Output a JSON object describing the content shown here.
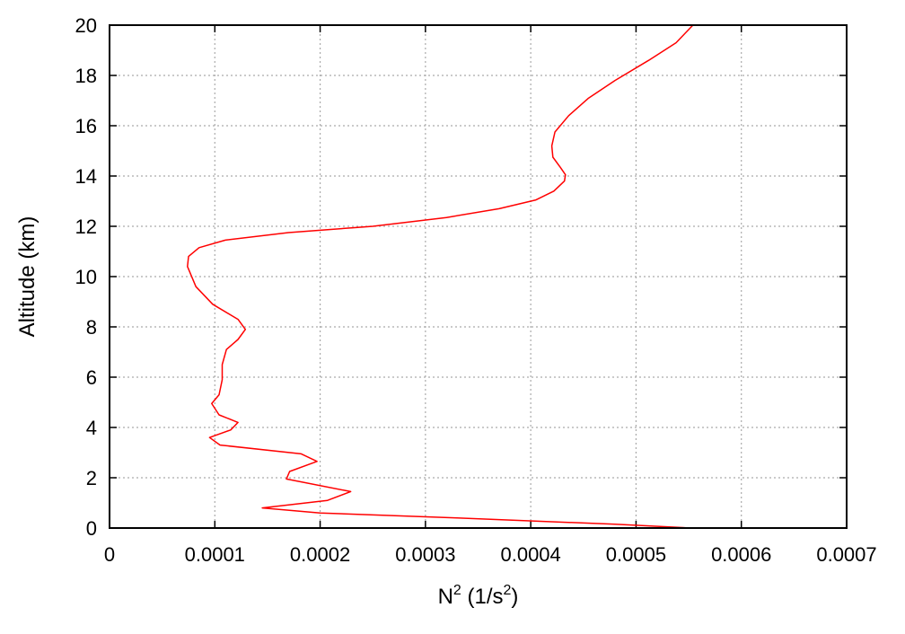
{
  "chart_data": {
    "type": "line",
    "xlabel_base": "N",
    "xlabel_base_sup": "2",
    "xlabel_unit_prefix": " (1/s",
    "xlabel_unit_sup": "2",
    "xlabel_unit_suffix": ")",
    "ylabel": "Altitude (km)",
    "xlim": [
      0,
      0.0007
    ],
    "ylim": [
      0,
      20
    ],
    "xticks": [
      0,
      0.0001,
      0.0002,
      0.0003,
      0.0004,
      0.0005,
      0.0006,
      0.0007
    ],
    "xtick_labels": [
      "0",
      "0.0001",
      "0.0002",
      "0.0003",
      "0.0004",
      "0.0005",
      "0.0006",
      "0.0007"
    ],
    "yticks": [
      0,
      2,
      4,
      6,
      8,
      10,
      12,
      14,
      16,
      18,
      20
    ],
    "ytick_labels": [
      "0",
      "2",
      "4",
      "6",
      "8",
      "10",
      "12",
      "14",
      "16",
      "18",
      "20"
    ],
    "grid": true,
    "series": [
      {
        "color": "#ff0000",
        "points": [
          [
            0.000552,
            0.0
          ],
          [
            0.00048,
            0.15
          ],
          [
            0.00033,
            0.4
          ],
          [
            0.0002,
            0.6
          ],
          [
            0.000145,
            0.8
          ],
          [
            0.000207,
            1.1
          ],
          [
            0.000229,
            1.45
          ],
          [
            0.000168,
            1.95
          ],
          [
            0.000171,
            2.25
          ],
          [
            0.000197,
            2.65
          ],
          [
            0.000182,
            2.95
          ],
          [
            0.000105,
            3.3
          ],
          [
            9.5e-05,
            3.6
          ],
          [
            0.000115,
            3.9
          ],
          [
            0.000122,
            4.2
          ],
          [
            0.000104,
            4.5
          ],
          [
            9.7e-05,
            4.95
          ],
          [
            0.000104,
            5.3
          ],
          [
            0.000107,
            5.9
          ],
          [
            0.000107,
            6.5
          ],
          [
            0.000111,
            7.1
          ],
          [
            0.000122,
            7.5
          ],
          [
            0.000129,
            7.9
          ],
          [
            0.000122,
            8.3
          ],
          [
            9.8e-05,
            8.9
          ],
          [
            8.2e-05,
            9.6
          ],
          [
            7.4e-05,
            10.4
          ],
          [
            7.5e-05,
            10.8
          ],
          [
            8.5e-05,
            11.15
          ],
          [
            0.00011,
            11.45
          ],
          [
            0.00017,
            11.75
          ],
          [
            0.00025,
            12.0
          ],
          [
            0.00032,
            12.35
          ],
          [
            0.00037,
            12.7
          ],
          [
            0.000405,
            13.05
          ],
          [
            0.000422,
            13.4
          ],
          [
            0.000432,
            13.8
          ],
          [
            0.000433,
            14.05
          ],
          [
            0.000428,
            14.35
          ],
          [
            0.000421,
            14.75
          ],
          [
            0.00042,
            15.2
          ],
          [
            0.000423,
            15.75
          ],
          [
            0.000436,
            16.4
          ],
          [
            0.000455,
            17.1
          ],
          [
            0.00048,
            17.8
          ],
          [
            0.000512,
            18.6
          ],
          [
            0.000538,
            19.3
          ],
          [
            0.000554,
            20.0
          ]
        ]
      }
    ]
  }
}
